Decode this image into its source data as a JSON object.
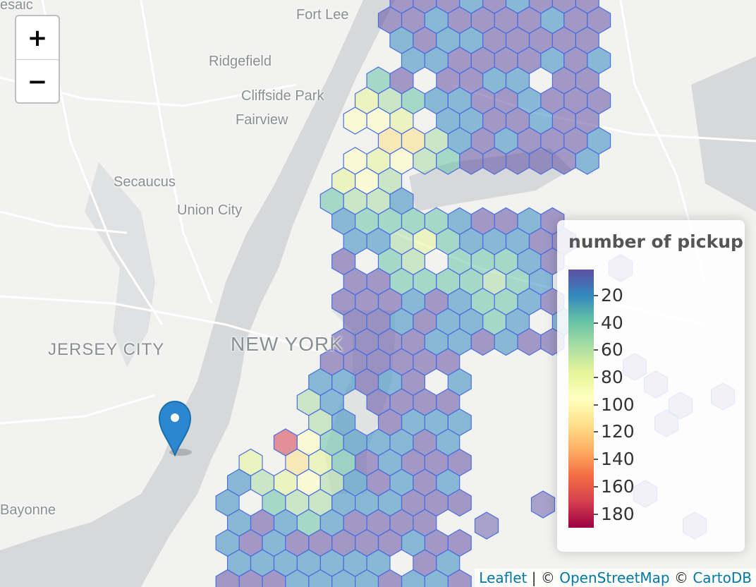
{
  "map": {
    "places": [
      {
        "name": "Fort Lee"
      },
      {
        "name": "Ridgefield"
      },
      {
        "name": "Cliffside Park"
      },
      {
        "name": "Fairview"
      },
      {
        "name": "Secaucus"
      },
      {
        "name": "Union City"
      },
      {
        "name": "JERSEY CITY"
      },
      {
        "name": "NEW YORK"
      },
      {
        "name": "Bayonne"
      },
      {
        "name": "esaic"
      }
    ],
    "zoom_in_label": "+",
    "zoom_out_label": "−",
    "marker_icon": "map-pin-icon",
    "marker_color": "#2a87d0"
  },
  "legend": {
    "title": "number of pickup",
    "colormap": "Spectral (reversed)",
    "ticks": [
      "20",
      "40",
      "60",
      "80",
      "100",
      "120",
      "140",
      "160",
      "180"
    ],
    "colors": [
      "#5e4fa2",
      "#3288bd",
      "#66c2a5",
      "#abdda4",
      "#e6f598",
      "#ffffbf",
      "#fee08b",
      "#fdae61",
      "#f46d43",
      "#d53e4f",
      "#9e0142"
    ]
  },
  "attribution": {
    "leaflet": "Leaflet",
    "sep": " | © ",
    "osm": "OpenStreetMap",
    "sep2": " © ",
    "carto": "CartoDB"
  },
  "chart_data": {
    "type": "heatmap",
    "title": "number of pickup",
    "value_range": [
      1,
      190
    ],
    "tick_values": [
      20,
      40,
      60,
      80,
      100,
      120,
      140,
      160,
      180
    ]
  }
}
